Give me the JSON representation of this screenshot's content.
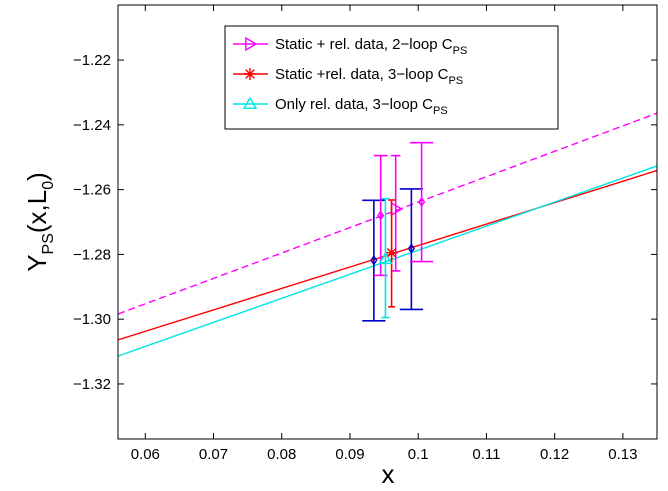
{
  "chart_data": {
    "type": "line",
    "xlabel": "x",
    "ylabel": {
      "main": "Y",
      "sub": "PS",
      "tail": "(x,L",
      "sub2": "0",
      "close": ")"
    },
    "xlim": [
      0.056,
      0.135
    ],
    "ylim": [
      -1.337,
      -1.203
    ],
    "xticks": [
      0.06,
      0.07,
      0.08,
      0.09,
      0.1,
      0.11,
      0.12,
      0.13
    ],
    "xtick_labels": [
      "0.06",
      "0.07",
      "0.08",
      "0.09",
      "0.1",
      "0.11",
      "0.12",
      "0.13"
    ],
    "yticks": [
      -1.32,
      -1.3,
      -1.28,
      -1.26,
      -1.24,
      -1.22
    ],
    "ytick_labels": [
      "−1.32",
      "−1.30",
      "−1.28",
      "−1.26",
      "−1.24",
      "−1.22"
    ],
    "grid": false,
    "legend_position": "top-center",
    "legend": [
      {
        "text": "Static + rel. data, 2−loop C",
        "sub": "PS",
        "color": "#ff00ff",
        "marker": "triangle-right"
      },
      {
        "text": "Static +rel. data, 3−loop C",
        "sub": "PS",
        "color": "#ff0000",
        "marker": "asterisk"
      },
      {
        "text": "Only rel. data, 3−loop C",
        "sub": "PS",
        "color": "#00e5e5",
        "marker": "triangle-up"
      }
    ],
    "fit_lines": [
      {
        "name": "Static + rel. data, 2-loop C_PS",
        "color": "#ff00ff",
        "dashed": true,
        "x": [
          0.056,
          0.135
        ],
        "y": [
          -1.2984,
          -1.2364
        ]
      },
      {
        "name": "Static +rel. data, 3-loop C_PS",
        "color": "#ff0000",
        "dashed": false,
        "x": [
          0.056,
          0.135
        ],
        "y": [
          -1.3064,
          -1.2541
        ]
      },
      {
        "name": "Only rel. data, 3-loop C_PS",
        "color": "#00e5e5",
        "dashed": false,
        "x": [
          0.056,
          0.135
        ],
        "y": [
          -1.3114,
          -1.2527
        ]
      }
    ],
    "points": [
      {
        "series": "blue",
        "color": "#0000cc",
        "marker": "diamond",
        "x": 0.0935,
        "y": -1.2818,
        "ylo": -1.3005,
        "yhi": -1.2633,
        "cap": 0.0017
      },
      {
        "series": "blue",
        "color": "#0000cc",
        "marker": "diamond",
        "x": 0.099,
        "y": -1.2782,
        "ylo": -1.297,
        "yhi": -1.2598,
        "cap": 0.0017
      },
      {
        "series": "magenta",
        "color": "#ff00ff",
        "marker": "diamond",
        "x": 0.0945,
        "y": -1.268,
        "ylo": -1.2865,
        "yhi": -1.2495,
        "cap": 0.001
      },
      {
        "series": "magenta",
        "color": "#ff00ff",
        "marker": "diamond",
        "x": 0.1005,
        "y": -1.2638,
        "ylo": -1.2822,
        "yhi": -1.2455,
        "cap": 0.0017
      },
      {
        "series": "magenta",
        "color": "#ff00ff",
        "marker": "triangle-right",
        "x": 0.0967,
        "y": -1.266,
        "ylo": -1.2851,
        "yhi": -1.2495,
        "cap": 0.0007
      },
      {
        "series": "red",
        "color": "#ff0000",
        "marker": "asterisk",
        "x": 0.0961,
        "y": -1.2795,
        "ylo": -1.2962,
        "yhi": -1.2632,
        "cap": 0.0005
      },
      {
        "series": "cyan",
        "color": "#00e5e5",
        "marker": "triangle-up",
        "x": 0.0952,
        "y": -1.2815,
        "ylo": -1.2995,
        "yhi": -1.2628,
        "cap": 0.0006
      }
    ]
  }
}
